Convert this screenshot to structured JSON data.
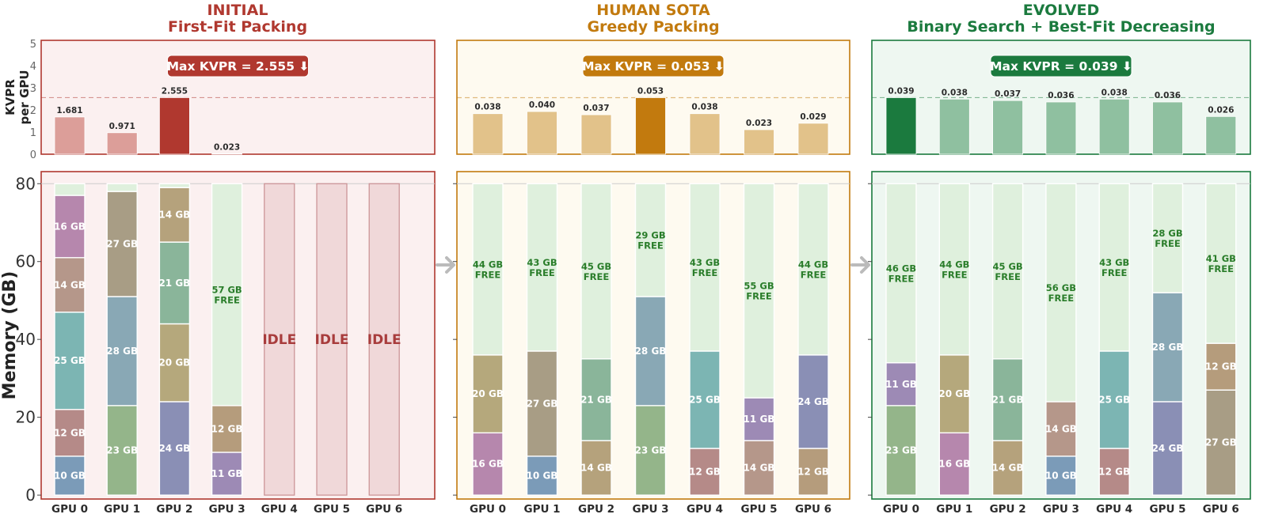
{
  "chart_data": {
    "type": "bar",
    "kvpr_axis": {
      "ylabel_line1": "KVPR",
      "ylabel_line2": "per GPU",
      "ticks": [
        0,
        1,
        2,
        3,
        4,
        5
      ],
      "ylim": [
        0,
        5.14
      ]
    },
    "memory_axis": {
      "ylabel": "Memory (GB)",
      "ticks": [
        0,
        20,
        40,
        60,
        80
      ],
      "ylim": [
        -1,
        83.1
      ],
      "capacity": 80
    },
    "categories": [
      "GPU 0",
      "GPU 1",
      "GPU 2",
      "GPU 3",
      "GPU 4",
      "GPU 5",
      "GPU 6"
    ],
    "free_color": "#dff0dd",
    "transition_arrow_icon": "right-arrow",
    "panels": [
      {
        "title": "INITIAL",
        "subtitle": "First-Fit Packing",
        "badge": "Max KVPR = 2.555  ⬇",
        "accent": "#b0382f",
        "bar_light": "#dc9e99",
        "panel_bg": "#fbf0f0",
        "kvpr": [
          1.681,
          0.971,
          2.555,
          0.023,
          null,
          null,
          null
        ],
        "kvpr_ylim": [
          0,
          5.14
        ],
        "show_ticks": true,
        "gpus": [
          {
            "segments": [
              {
                "label": "10 GB",
                "value": 10,
                "color": "#7b9bb8"
              },
              {
                "label": "12 GB",
                "value": 12,
                "color": "#b58a88"
              },
              {
                "label": "25 GB",
                "value": 25,
                "color": "#7cb5b3"
              },
              {
                "label": "14 GB",
                "value": 14,
                "color": "#b5978a"
              },
              {
                "label": "16 GB",
                "value": 16,
                "color": "#b687ad"
              }
            ],
            "free": {
              "value": 3,
              "label": "",
              "tag": ""
            }
          },
          {
            "segments": [
              {
                "label": "23 GB",
                "value": 23,
                "color": "#94b58a"
              },
              {
                "label": "28 GB",
                "value": 28,
                "color": "#89a8b5"
              },
              {
                "label": "27 GB",
                "value": 27,
                "color": "#a89d85"
              }
            ],
            "free": {
              "value": 2,
              "label": "",
              "tag": ""
            }
          },
          {
            "segments": [
              {
                "label": "24 GB",
                "value": 24,
                "color": "#8a8fb5"
              },
              {
                "label": "20 GB",
                "value": 20,
                "color": "#b5a87c"
              },
              {
                "label": "21 GB",
                "value": 21,
                "color": "#8ab59a"
              },
              {
                "label": "14 GB",
                "value": 14,
                "color": "#b5a27c"
              }
            ],
            "free": {
              "value": 1,
              "label": "",
              "tag": ""
            }
          },
          {
            "segments": [
              {
                "label": "11 GB",
                "value": 11,
                "color": "#9d8ab5"
              },
              {
                "label": "12 GB",
                "value": 12,
                "color": "#b59c7c"
              }
            ],
            "free": {
              "value": 57,
              "label": "57 GB",
              "tag": "FREE"
            }
          },
          {
            "idle": "IDLE"
          },
          {
            "idle": "IDLE"
          },
          {
            "idle": "IDLE"
          }
        ]
      },
      {
        "title": "HUMAN SOTA",
        "subtitle": "Greedy Packing",
        "badge": "Max KVPR = 0.053  ⬇",
        "accent": "#c27a0e",
        "bar_light": "#e2c28a",
        "panel_bg": "#fefaf0",
        "kvpr": [
          0.038,
          0.04,
          0.037,
          0.053,
          0.038,
          0.023,
          0.029
        ],
        "kvpr_ylim": [
          0,
          0.1067
        ],
        "show_ticks": false,
        "gpus": [
          {
            "segments": [
              {
                "label": "16 GB",
                "value": 16,
                "color": "#b687ad"
              },
              {
                "label": "20 GB",
                "value": 20,
                "color": "#b5a87c"
              }
            ],
            "free": {
              "value": 44,
              "label": "44 GB",
              "tag": "FREE"
            }
          },
          {
            "segments": [
              {
                "label": "10 GB",
                "value": 10,
                "color": "#7b9bb8"
              },
              {
                "label": "27 GB",
                "value": 27,
                "color": "#a89d85"
              }
            ],
            "free": {
              "value": 43,
              "label": "43 GB",
              "tag": "FREE"
            }
          },
          {
            "segments": [
              {
                "label": "14 GB",
                "value": 14,
                "color": "#b5a27c"
              },
              {
                "label": "21 GB",
                "value": 21,
                "color": "#8ab59a"
              }
            ],
            "free": {
              "value": 45,
              "label": "45 GB",
              "tag": "FREE"
            }
          },
          {
            "segments": [
              {
                "label": "23 GB",
                "value": 23,
                "color": "#94b58a"
              },
              {
                "label": "28 GB",
                "value": 28,
                "color": "#89a8b5"
              }
            ],
            "free": {
              "value": 29,
              "label": "29 GB",
              "tag": "FREE"
            }
          },
          {
            "segments": [
              {
                "label": "12 GB",
                "value": 12,
                "color": "#b58a88"
              },
              {
                "label": "25 GB",
                "value": 25,
                "color": "#7cb5b3"
              }
            ],
            "free": {
              "value": 43,
              "label": "43 GB",
              "tag": "FREE"
            }
          },
          {
            "segments": [
              {
                "label": "14 GB",
                "value": 14,
                "color": "#b5978a"
              },
              {
                "label": "11 GB",
                "value": 11,
                "color": "#9d8ab5"
              }
            ],
            "free": {
              "value": 55,
              "label": "55 GB",
              "tag": "FREE"
            }
          },
          {
            "segments": [
              {
                "label": "12 GB",
                "value": 12,
                "color": "#b59c7c"
              },
              {
                "label": "24 GB",
                "value": 24,
                "color": "#8a8fb5"
              }
            ],
            "free": {
              "value": 44,
              "label": "44 GB",
              "tag": "FREE"
            }
          }
        ]
      },
      {
        "title": "EVOLVED",
        "subtitle": "Binary Search + Best-Fit Decreasing",
        "badge": "Max KVPR = 0.039  ⬇",
        "accent": "#1b7a3e",
        "bar_light": "#8fc0a0",
        "panel_bg": "#eef7f1",
        "kvpr": [
          0.039,
          0.038,
          0.037,
          0.036,
          0.038,
          0.036,
          0.026
        ],
        "kvpr_ylim": [
          0,
          0.0785
        ],
        "show_ticks": false,
        "gpus": [
          {
            "segments": [
              {
                "label": "23 GB",
                "value": 23,
                "color": "#94b58a"
              },
              {
                "label": "11 GB",
                "value": 11,
                "color": "#9d8ab5"
              }
            ],
            "free": {
              "value": 46,
              "label": "46 GB",
              "tag": "FREE"
            }
          },
          {
            "segments": [
              {
                "label": "16 GB",
                "value": 16,
                "color": "#b687ad"
              },
              {
                "label": "20 GB",
                "value": 20,
                "color": "#b5a87c"
              }
            ],
            "free": {
              "value": 44,
              "label": "44 GB",
              "tag": "FREE"
            }
          },
          {
            "segments": [
              {
                "label": "14 GB",
                "value": 14,
                "color": "#b5a27c"
              },
              {
                "label": "21 GB",
                "value": 21,
                "color": "#8ab59a"
              }
            ],
            "free": {
              "value": 45,
              "label": "45 GB",
              "tag": "FREE"
            }
          },
          {
            "segments": [
              {
                "label": "10 GB",
                "value": 10,
                "color": "#7b9bb8"
              },
              {
                "label": "14 GB",
                "value": 14,
                "color": "#b5978a"
              }
            ],
            "free": {
              "value": 56,
              "label": "56 GB",
              "tag": "FREE"
            }
          },
          {
            "segments": [
              {
                "label": "12 GB",
                "value": 12,
                "color": "#b58a88"
              },
              {
                "label": "25 GB",
                "value": 25,
                "color": "#7cb5b3"
              }
            ],
            "free": {
              "value": 43,
              "label": "43 GB",
              "tag": "FREE"
            }
          },
          {
            "segments": [
              {
                "label": "24 GB",
                "value": 24,
                "color": "#8a8fb5"
              },
              {
                "label": "28 GB",
                "value": 28,
                "color": "#89a8b5"
              }
            ],
            "free": {
              "value": 28,
              "label": "28 GB",
              "tag": "FREE"
            }
          },
          {
            "segments": [
              {
                "label": "27 GB",
                "value": 27,
                "color": "#a89d85"
              },
              {
                "label": "12 GB",
                "value": 12,
                "color": "#b59c7c"
              }
            ],
            "free": {
              "value": 41,
              "label": "41 GB",
              "tag": "FREE"
            }
          }
        ]
      }
    ]
  }
}
